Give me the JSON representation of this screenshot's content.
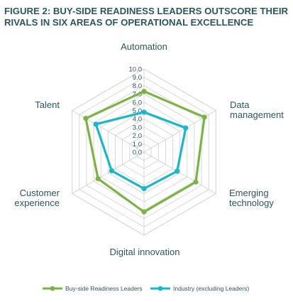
{
  "page": {
    "title_lines": [
      "FIGURE 2: BUY-SIDE READINESS LEADERS OUTSCORE THEIR",
      "RIVALS IN SIX AREAS OF OPERATIONAL EXCELLENCE"
    ]
  },
  "chart_data": {
    "type": "radar",
    "title": "FIGURE 2: BUY-SIDE READINESS LEADERS OUTSCORE THEIR RIVALS IN SIX AREAS OF OPERATIONAL EXCELLENCE",
    "categories": [
      [
        "Automation"
      ],
      [
        "Data",
        "management"
      ],
      [
        "Emerging",
        "technology"
      ],
      [
        "Digital innovation"
      ],
      [
        "Customer",
        "experience"
      ],
      [
        "Talent"
      ]
    ],
    "category_names": [
      "Automation",
      "Data management",
      "Emerging technology",
      "Digital innovation",
      "Customer experience",
      "Talent"
    ],
    "tick_labels": [
      "0.0",
      "1.0",
      "2.0",
      "3.0",
      "4.0",
      "5.0",
      "6.0",
      "7.0",
      "8.0",
      "9.0",
      "10.0"
    ],
    "range": [
      0,
      10
    ],
    "grid": true,
    "legend_position": "bottom",
    "series": [
      {
        "name": "Buy-side Readiness Leaders",
        "color": "#7ab542",
        "values": [
          7.3,
          8.4,
          7.2,
          7.2,
          6.4,
          8.1
        ]
      },
      {
        "name": "Industry (excluding Leaders)",
        "color": "#17b7cc",
        "values": [
          4.8,
          5.8,
          4.6,
          4.4,
          4.5,
          6.7
        ]
      }
    ],
    "grid_color": "#d0d0d0"
  }
}
